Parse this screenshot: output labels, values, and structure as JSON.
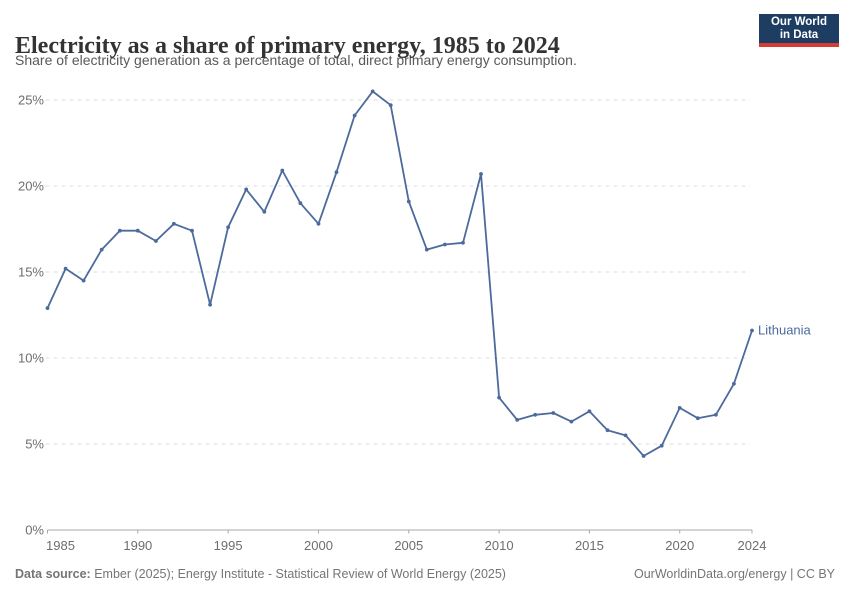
{
  "header": {
    "title": "Electricity as a share of primary energy, 1985 to 2024",
    "subtitle": "Share of electricity generation as a percentage of total, direct primary energy consumption.",
    "logo": {
      "line1": "Our World",
      "line2": "in Data"
    }
  },
  "chart_data": {
    "type": "line",
    "title": "Electricity as a share of primary energy, 1985 to 2024",
    "xlabel": "",
    "ylabel": "",
    "xlim": [
      1985,
      2024
    ],
    "ylim": [
      0,
      26
    ],
    "grid": true,
    "legend_position": "end-of-line",
    "x_ticks": [
      1985,
      1990,
      1995,
      2000,
      2005,
      2010,
      2015,
      2020,
      2024
    ],
    "y_ticks": [
      0,
      5,
      10,
      15,
      20,
      25
    ],
    "y_tick_labels": [
      "0%",
      "5%",
      "10%",
      "15%",
      "20%",
      "25%"
    ],
    "series": [
      {
        "name": "Lithuania",
        "color": "#4C6A9C",
        "x": [
          1985,
          1986,
          1987,
          1988,
          1989,
          1990,
          1991,
          1992,
          1993,
          1994,
          1995,
          1996,
          1997,
          1998,
          1999,
          2000,
          2001,
          2002,
          2003,
          2004,
          2005,
          2006,
          2007,
          2008,
          2009,
          2010,
          2011,
          2012,
          2013,
          2014,
          2015,
          2016,
          2017,
          2018,
          2019,
          2020,
          2021,
          2022,
          2023,
          2024
        ],
        "values": [
          12.9,
          15.2,
          14.5,
          16.3,
          17.4,
          17.4,
          16.8,
          17.8,
          17.4,
          13.1,
          17.6,
          19.8,
          18.5,
          20.9,
          19.0,
          17.8,
          20.8,
          24.1,
          25.5,
          24.7,
          19.1,
          16.3,
          16.6,
          16.7,
          20.7,
          7.7,
          6.4,
          6.7,
          6.8,
          6.3,
          6.9,
          5.8,
          5.5,
          4.3,
          4.9,
          7.1,
          6.5,
          6.7,
          8.5,
          11.6
        ]
      }
    ],
    "colors": {
      "gridline": "#dedede",
      "axis": "#a8a8a8",
      "tick_label": "#6e6e6e"
    }
  },
  "footer": {
    "source_label": "Data source:",
    "source_text": " Ember (2025); Energy Institute - Statistical Review of World Energy (2025)",
    "right_text": "OurWorldinData.org/energy | CC BY"
  }
}
